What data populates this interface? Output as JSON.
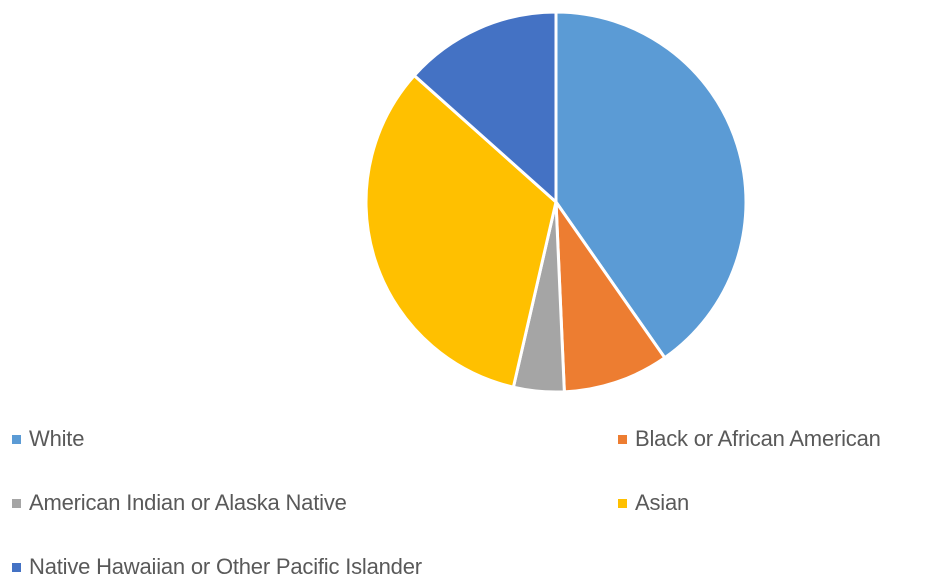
{
  "chart_data": {
    "type": "pie",
    "title": "",
    "legend_position": "bottom",
    "slices": [
      {
        "label": "White",
        "value": 40.3,
        "color": "#5B9BD5"
      },
      {
        "label": "Black or African American",
        "value": 9.0,
        "color": "#ED7D31"
      },
      {
        "label": "American Indian or Alaska Native",
        "value": 4.3,
        "color": "#A5A5A5"
      },
      {
        "label": "Asian",
        "value": 33.0,
        "color": "#FFC000"
      },
      {
        "label": "Native Hawaiian or Other Pacific Islander",
        "value": 13.4,
        "color": "#4472C4"
      }
    ]
  }
}
